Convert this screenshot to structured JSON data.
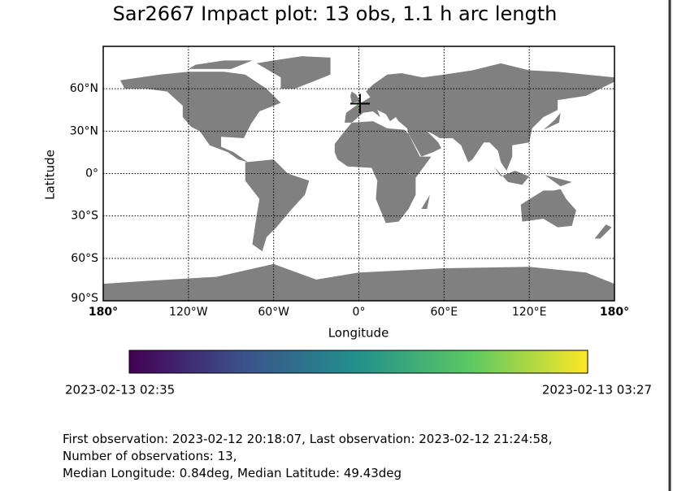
{
  "chart_data": {
    "type": "map",
    "title": "Sar2667 Impact plot: 13 obs, 1.1 h arc length",
    "x_label": "Longitude",
    "y_label": "Latitude",
    "xlim": [
      -180,
      180
    ],
    "ylim": [
      -90,
      90
    ],
    "xticks": [
      {
        "value": -180,
        "label": "180°"
      },
      {
        "value": -120,
        "label": "120°W"
      },
      {
        "value": -60,
        "label": "60°W"
      },
      {
        "value": 0,
        "label": "0°"
      },
      {
        "value": 60,
        "label": "60°E"
      },
      {
        "value": 120,
        "label": "120°E"
      },
      {
        "value": 180,
        "label": "180°"
      }
    ],
    "yticks": [
      {
        "value": -90,
        "label": "90°S"
      },
      {
        "value": -60,
        "label": "60°S"
      },
      {
        "value": -30,
        "label": "30°S"
      },
      {
        "value": 0,
        "label": "0°"
      },
      {
        "value": 30,
        "label": "30°N"
      },
      {
        "value": 60,
        "label": "60°N"
      }
    ],
    "grid": true,
    "land_color": "#808080",
    "impact": {
      "lon": 0.84,
      "lat": 49.43
    },
    "colorbar": {
      "colormap": "viridis",
      "min_label": "2023-02-13 02:35",
      "max_label": "2023-02-13 03:27"
    },
    "footer": [
      "First observation: 2023-02-12 20:18:07, Last observation: 2023-02-12 21:24:58,",
      "Number of observations: 13,",
      "Median Longitude: 0.84deg, Median Latitude: 49.43deg"
    ]
  }
}
